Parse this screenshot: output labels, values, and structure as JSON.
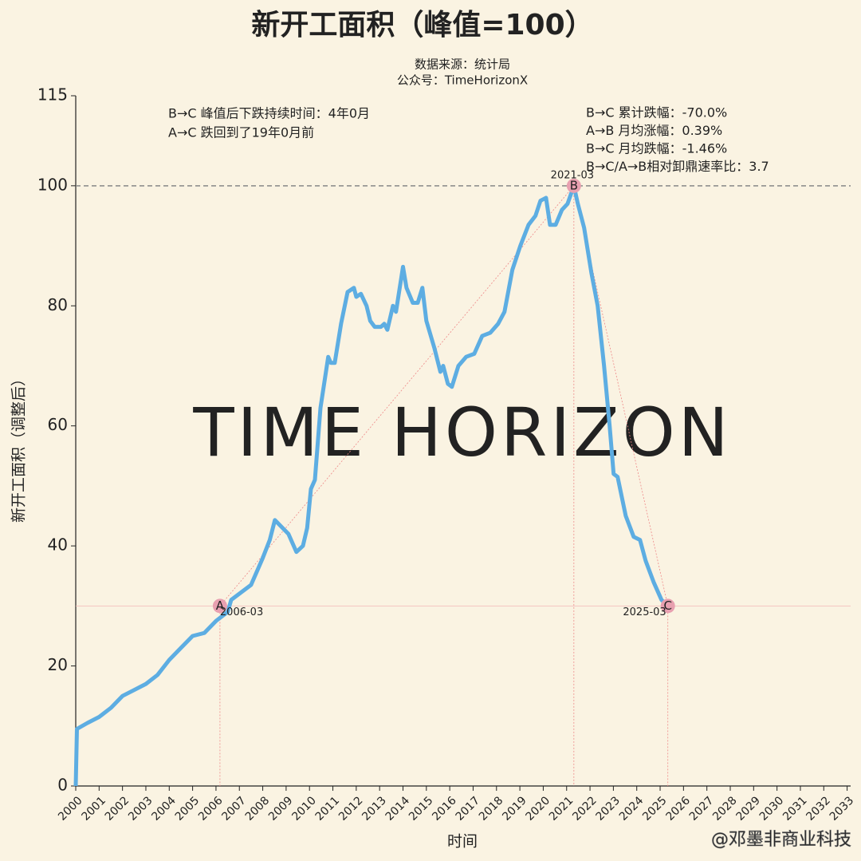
{
  "chart_data": {
    "type": "line",
    "title": "新开工面积（峰值=100）",
    "subtitle": [
      "数据来源：统计局",
      "公众号：TimeHorizonX"
    ],
    "x_label": "时间",
    "y_label": "新开工面积（调整后）",
    "watermark": "TIME HORIZON",
    "credit": "@邓墨非商业科技",
    "color": "#5dade2",
    "x": [
      2000,
      2000.05,
      2000.5,
      2001,
      2001.5,
      2002,
      2002.5,
      2003,
      2003.5,
      2004,
      2004.5,
      2005,
      2005.5,
      2006,
      2006.5,
      2006.65,
      2007.5,
      2008,
      2008.3,
      2008.52,
      2009.1,
      2009.44,
      2009.72,
      2009.9,
      2010.06,
      2010.23,
      2010.47,
      2010.8,
      2010.91,
      2011.08,
      2011.35,
      2011.63,
      2011.9,
      2012,
      2012.2,
      2012.44,
      2012.6,
      2012.79,
      2013.06,
      2013.2,
      2013.33,
      2013.57,
      2013.7,
      2014,
      2014.15,
      2014.42,
      2014.63,
      2014.83,
      2015,
      2015.34,
      2015.6,
      2015.72,
      2015.92,
      2016.09,
      2016.37,
      2016.7,
      2017.05,
      2017.39,
      2017.73,
      2018.07,
      2018.34,
      2018.68,
      2019.02,
      2019.37,
      2019.67,
      2019.88,
      2020.12,
      2020.29,
      2020.53,
      2020.8,
      2021.04,
      2021.31,
      2021.48,
      2021.75,
      2022.06,
      2022.33,
      2022.6,
      2022.84,
      2023.01,
      2023.18,
      2023.53,
      2023.87,
      2024.14,
      2024.38,
      2024.72,
      2025.06,
      2025.33
    ],
    "values": [
      0,
      9.5,
      10.5,
      11.5,
      13,
      15,
      16,
      17,
      18.5,
      21,
      23,
      25,
      25.5,
      27.5,
      29,
      31,
      33.5,
      38,
      41,
      44.3,
      42,
      39,
      40,
      43,
      49.5,
      51,
      63,
      71.5,
      70.5,
      70.5,
      77,
      82.3,
      83,
      81.5,
      82,
      80,
      77.5,
      76.5,
      76.5,
      77,
      76,
      80,
      79,
      86.5,
      83,
      80.5,
      80.5,
      83,
      77.5,
      73,
      69,
      70,
      67,
      66.5,
      70,
      71.5,
      72,
      75,
      75.5,
      77,
      79,
      86,
      90,
      93.5,
      95,
      97.5,
      98,
      93.5,
      93.5,
      96,
      97,
      100,
      97,
      93,
      85.5,
      80,
      70,
      60,
      52,
      51.5,
      45,
      41.5,
      41,
      37.5,
      34,
      31,
      30
    ],
    "xlim": [
      2000,
      2033.15
    ],
    "ylim": [
      0,
      115
    ],
    "xticks": [
      2000,
      2001,
      2002,
      2003,
      2004,
      2005,
      2006,
      2007,
      2008,
      2009,
      2010,
      2011,
      2012,
      2013,
      2014,
      2015,
      2016,
      2017,
      2018,
      2019,
      2020,
      2021,
      2022,
      2023,
      2024,
      2025,
      2026,
      2027,
      2028,
      2029,
      2030,
      2031,
      2032,
      2033
    ],
    "yticks": [
      0,
      20,
      40,
      60,
      80,
      100,
      115
    ],
    "peak_line": 100,
    "points": [
      {
        "label": "A",
        "date": "2006-03",
        "x": 2006.17,
        "y": 30
      },
      {
        "label": "B",
        "date": "2021-03",
        "x": 2021.31,
        "y": 100
      },
      {
        "label": "C",
        "date": "2025-03",
        "x": 2025.33,
        "y": 30
      }
    ],
    "notes_left": [
      "B→C 峰值后下跌持续时间：4年0月",
      "A→C 跌回到了19年0月前"
    ],
    "notes_right": [
      "B→C 累计跌幅：-70.0%",
      "A→B 月均涨幅：0.39%",
      "B→C 月均跌幅：-1.46%",
      "B→C/A→B相对卸鼎速率比：3.7"
    ]
  }
}
